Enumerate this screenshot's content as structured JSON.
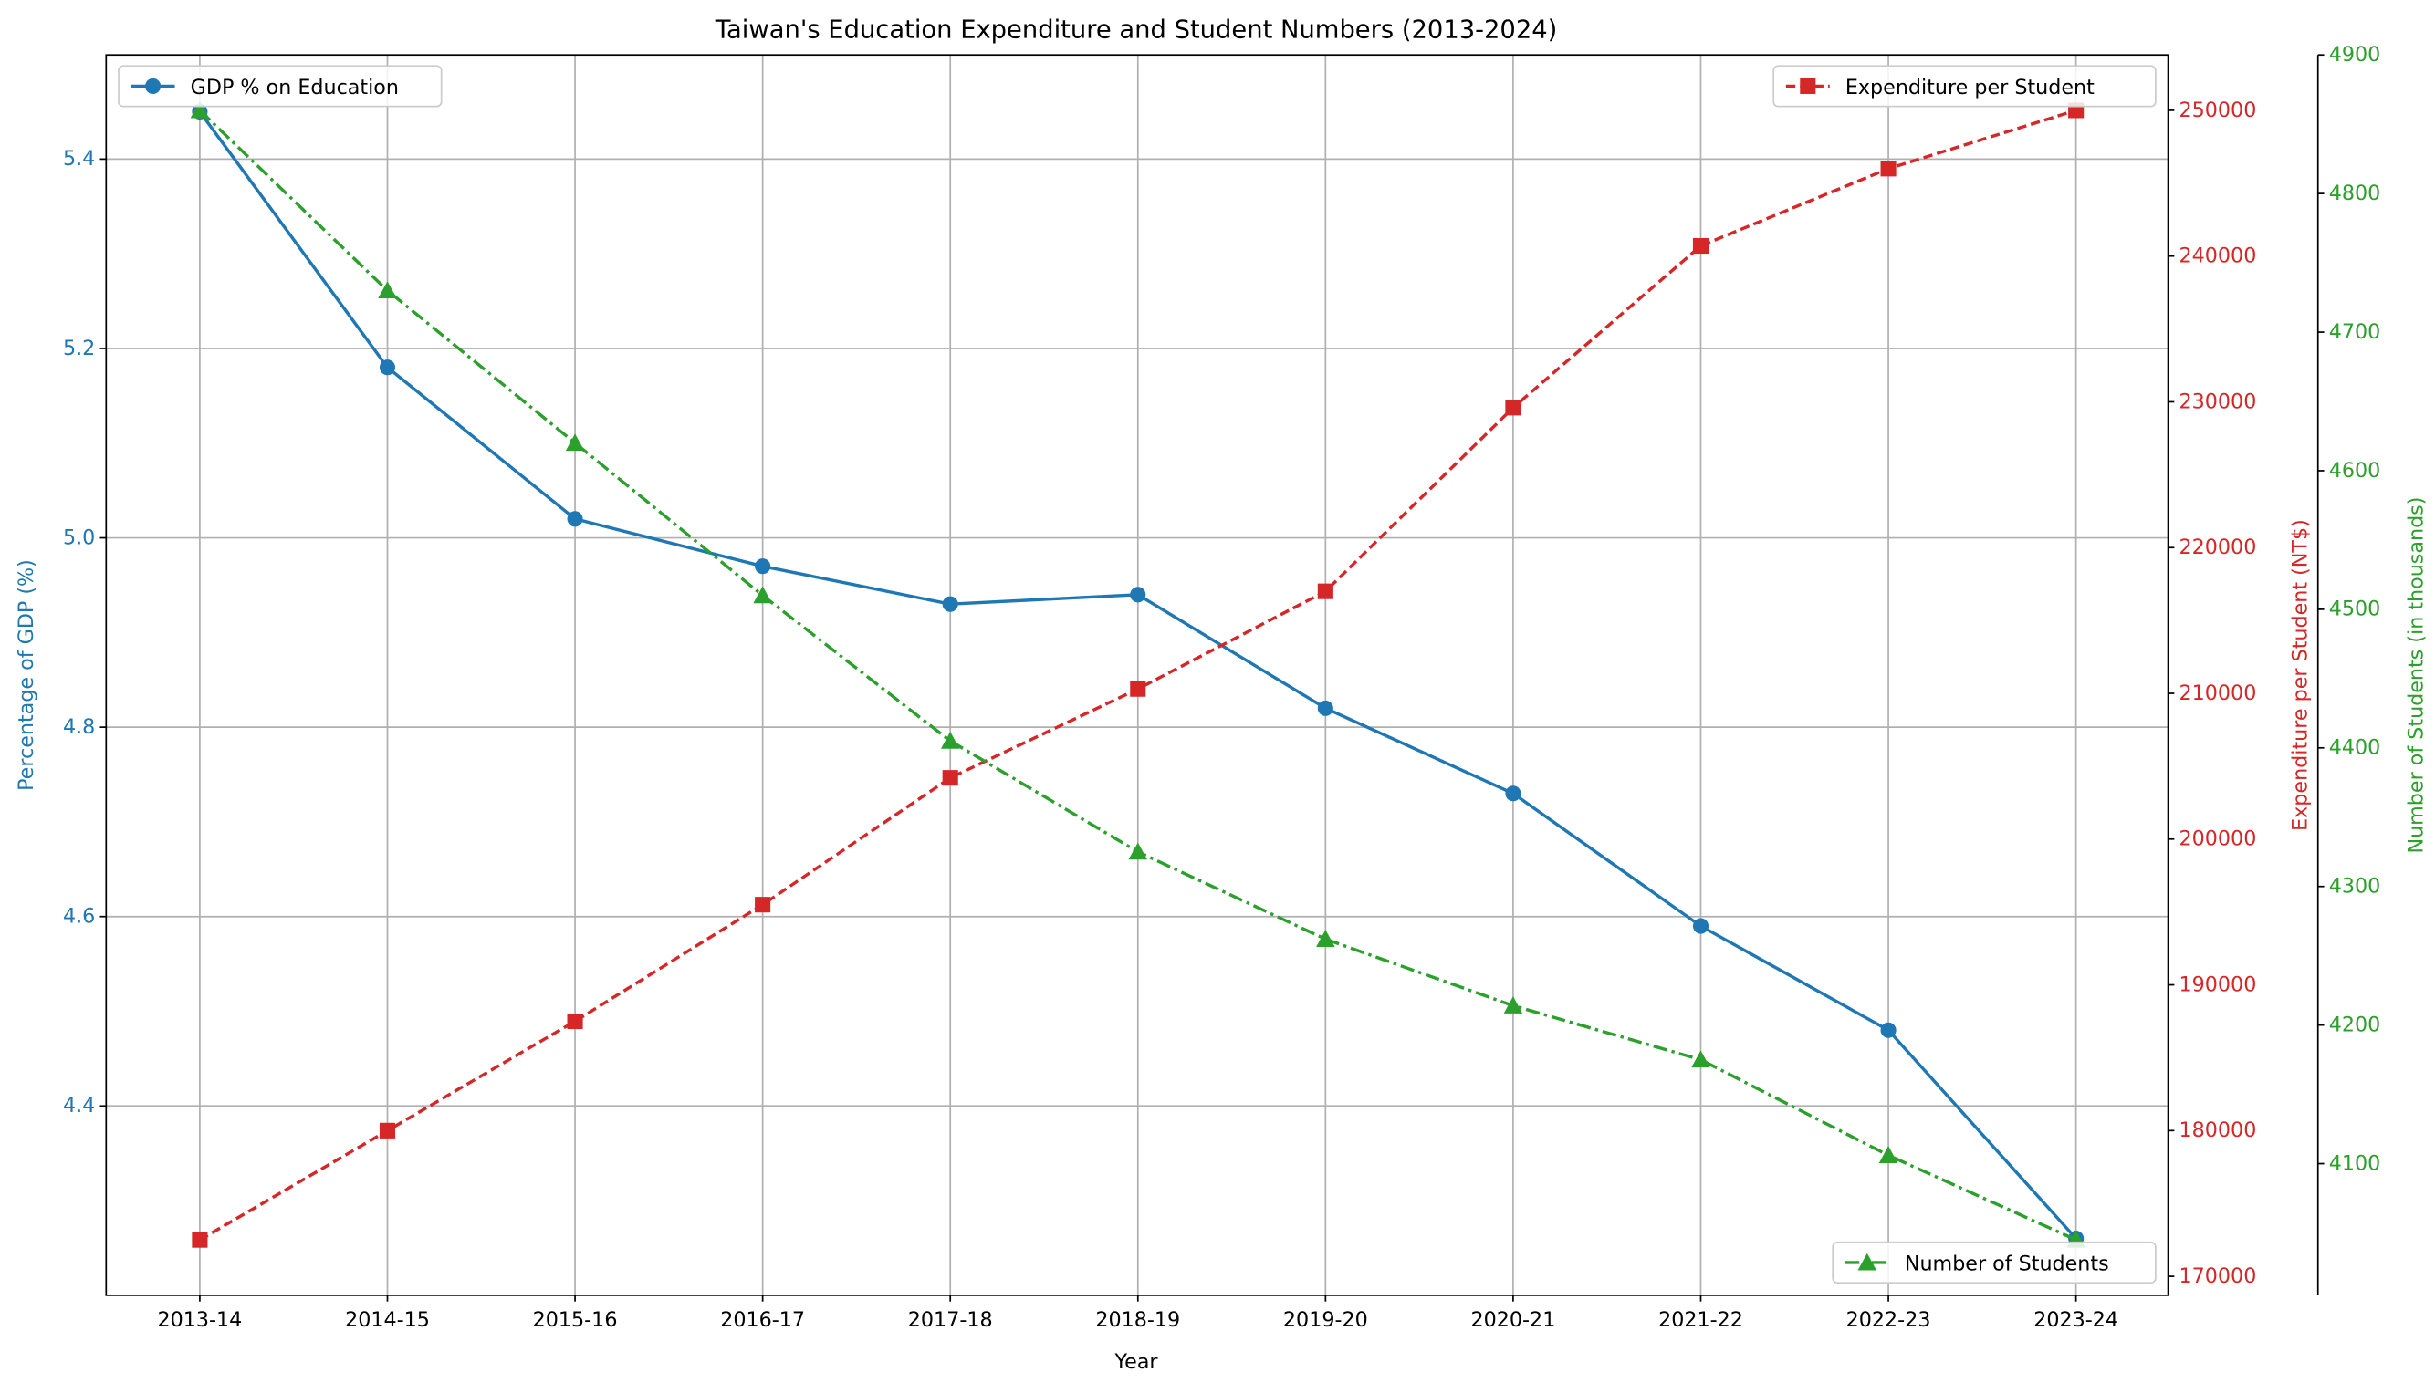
{
  "chart_data": {
    "type": "line",
    "title": "Taiwan's Education Expenditure and Student Numbers (2013-2024)",
    "xlabel": "Year",
    "categories": [
      "2013-14",
      "2014-15",
      "2015-16",
      "2016-17",
      "2017-18",
      "2018-19",
      "2019-20",
      "2020-21",
      "2021-22",
      "2022-23",
      "2023-24"
    ],
    "axes": [
      {
        "id": "left",
        "label": "Percentage of GDP (%)",
        "color": "#1f77b4",
        "ylim": [
          4.2,
          5.51
        ],
        "ticks": [
          4.4,
          4.6,
          4.8,
          5.0,
          5.2,
          5.4
        ],
        "tick_labels": [
          "4.4",
          "4.6",
          "4.8",
          "5.0",
          "5.2",
          "5.4"
        ]
      },
      {
        "id": "right1",
        "label": "Expenditure per Student (NT$)",
        "color": "#d62728",
        "ylim": [
          168700,
          253800
        ],
        "ticks": [
          170000,
          180000,
          190000,
          200000,
          210000,
          220000,
          230000,
          240000,
          250000
        ],
        "tick_labels": [
          "170000",
          "180000",
          "190000",
          "200000",
          "210000",
          "220000",
          "230000",
          "240000",
          "250000"
        ]
      },
      {
        "id": "right2",
        "label": "Number of Students (in thousands)",
        "color": "#2ca02c",
        "ylim": [
          4005,
          4900
        ],
        "ticks": [
          4100,
          4200,
          4300,
          4400,
          4500,
          4600,
          4700,
          4800,
          4900
        ],
        "tick_labels": [
          "4100",
          "4200",
          "4300",
          "4400",
          "4500",
          "4600",
          "4700",
          "4800",
          "4900"
        ]
      }
    ],
    "series": [
      {
        "name": "GDP % on Education",
        "axis": "left",
        "color": "#1f77b4",
        "style": "solid",
        "marker": "circle",
        "legend": "top-left",
        "values": [
          5.45,
          5.18,
          5.02,
          4.97,
          4.93,
          4.94,
          4.82,
          4.73,
          4.59,
          4.48,
          4.26
        ]
      },
      {
        "name": "Expenditure per Student",
        "axis": "right1",
        "color": "#d62728",
        "style": "dashed",
        "marker": "square",
        "legend": "top-right",
        "values": [
          172500,
          180000,
          187500,
          195500,
          204200,
          210300,
          217000,
          229600,
          240700,
          246000,
          250000
        ]
      },
      {
        "name": "Number of Students",
        "axis": "right2",
        "color": "#2ca02c",
        "style": "dashdot",
        "marker": "triangle",
        "legend": "bottom-right",
        "values": [
          4860,
          4730,
          4620,
          4510,
          4405,
          4325,
          4262,
          4214,
          4175,
          4106,
          4045
        ]
      }
    ],
    "grid": true
  }
}
